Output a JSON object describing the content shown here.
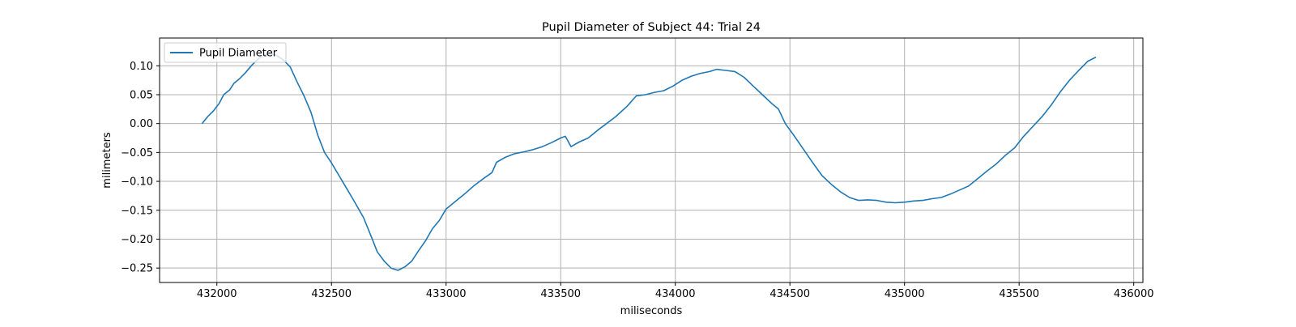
{
  "chart_data": {
    "type": "line",
    "title": "Pupil Diameter of Subject 44: Trial 24",
    "xlabel": "miliseconds",
    "ylabel": "milimeters",
    "xlim": [
      431750,
      436040
    ],
    "ylim": [
      -0.275,
      0.148
    ],
    "x_ticks": [
      432000,
      432500,
      433000,
      433500,
      434000,
      434500,
      435000,
      435500,
      436000
    ],
    "x_tick_labels": [
      "432000",
      "432500",
      "433000",
      "433500",
      "434000",
      "434500",
      "435000",
      "435500",
      "436000"
    ],
    "y_ticks": [
      -0.25,
      -0.2,
      -0.15,
      -0.1,
      -0.05,
      0.0,
      0.05,
      0.1
    ],
    "y_tick_labels": [
      "−0.25",
      "−0.20",
      "−0.15",
      "−0.10",
      "−0.05",
      "0.00",
      "0.05",
      "0.10"
    ],
    "grid": true,
    "legend": "upper-left",
    "series": [
      {
        "name": "Pupil Diameter",
        "color": "#1f77b4",
        "points": [
          [
            431935,
            0.0
          ],
          [
            431960,
            0.012
          ],
          [
            431985,
            0.022
          ],
          [
            432010,
            0.035
          ],
          [
            432030,
            0.05
          ],
          [
            432055,
            0.058
          ],
          [
            432075,
            0.07
          ],
          [
            432100,
            0.078
          ],
          [
            432125,
            0.088
          ],
          [
            432150,
            0.1
          ],
          [
            432175,
            0.11
          ],
          [
            432200,
            0.118
          ],
          [
            432230,
            0.121
          ],
          [
            432260,
            0.118
          ],
          [
            432290,
            0.11
          ],
          [
            432320,
            0.098
          ],
          [
            432350,
            0.072
          ],
          [
            432380,
            0.048
          ],
          [
            432410,
            0.02
          ],
          [
            432440,
            -0.02
          ],
          [
            432470,
            -0.05
          ],
          [
            432500,
            -0.068
          ],
          [
            432530,
            -0.088
          ],
          [
            432560,
            -0.108
          ],
          [
            432600,
            -0.135
          ],
          [
            432640,
            -0.163
          ],
          [
            432670,
            -0.192
          ],
          [
            432700,
            -0.222
          ],
          [
            432730,
            -0.238
          ],
          [
            432760,
            -0.25
          ],
          [
            432790,
            -0.254
          ],
          [
            432820,
            -0.248
          ],
          [
            432850,
            -0.238
          ],
          [
            432880,
            -0.22
          ],
          [
            432910,
            -0.203
          ],
          [
            432940,
            -0.182
          ],
          [
            432970,
            -0.168
          ],
          [
            433000,
            -0.148
          ],
          [
            433040,
            -0.135
          ],
          [
            433080,
            -0.122
          ],
          [
            433120,
            -0.108
          ],
          [
            433160,
            -0.096
          ],
          [
            433200,
            -0.085
          ],
          [
            433220,
            -0.067
          ],
          [
            433260,
            -0.058
          ],
          [
            433300,
            -0.052
          ],
          [
            433340,
            -0.049
          ],
          [
            433380,
            -0.045
          ],
          [
            433420,
            -0.04
          ],
          [
            433460,
            -0.033
          ],
          [
            433500,
            -0.025
          ],
          [
            433520,
            -0.022
          ],
          [
            433545,
            -0.04
          ],
          [
            433580,
            -0.032
          ],
          [
            433620,
            -0.025
          ],
          [
            433660,
            -0.012
          ],
          [
            433700,
            0.0
          ],
          [
            433740,
            0.012
          ],
          [
            433790,
            0.03
          ],
          [
            433830,
            0.048
          ],
          [
            433870,
            0.05
          ],
          [
            433910,
            0.054
          ],
          [
            433950,
            0.057
          ],
          [
            433990,
            0.065
          ],
          [
            434030,
            0.075
          ],
          [
            434070,
            0.082
          ],
          [
            434110,
            0.087
          ],
          [
            434150,
            0.09
          ],
          [
            434180,
            0.094
          ],
          [
            434220,
            0.092
          ],
          [
            434260,
            0.09
          ],
          [
            434300,
            0.08
          ],
          [
            434340,
            0.065
          ],
          [
            434380,
            0.05
          ],
          [
            434420,
            0.035
          ],
          [
            434450,
            0.025
          ],
          [
            434480,
            0.0
          ],
          [
            434520,
            -0.022
          ],
          [
            434560,
            -0.045
          ],
          [
            434600,
            -0.068
          ],
          [
            434640,
            -0.09
          ],
          [
            434680,
            -0.105
          ],
          [
            434720,
            -0.118
          ],
          [
            434760,
            -0.128
          ],
          [
            434800,
            -0.133
          ],
          [
            434840,
            -0.132
          ],
          [
            434880,
            -0.133
          ],
          [
            434920,
            -0.136
          ],
          [
            434960,
            -0.137
          ],
          [
            435000,
            -0.136
          ],
          [
            435040,
            -0.134
          ],
          [
            435080,
            -0.133
          ],
          [
            435120,
            -0.13
          ],
          [
            435160,
            -0.128
          ],
          [
            435200,
            -0.122
          ],
          [
            435240,
            -0.115
          ],
          [
            435280,
            -0.108
          ],
          [
            435320,
            -0.095
          ],
          [
            435360,
            -0.082
          ],
          [
            435400,
            -0.07
          ],
          [
            435440,
            -0.055
          ],
          [
            435480,
            -0.042
          ],
          [
            435520,
            -0.022
          ],
          [
            435560,
            -0.005
          ],
          [
            435600,
            0.012
          ],
          [
            435640,
            0.032
          ],
          [
            435680,
            0.055
          ],
          [
            435720,
            0.075
          ],
          [
            435760,
            0.092
          ],
          [
            435800,
            0.108
          ],
          [
            435835,
            0.115
          ]
        ]
      }
    ]
  }
}
